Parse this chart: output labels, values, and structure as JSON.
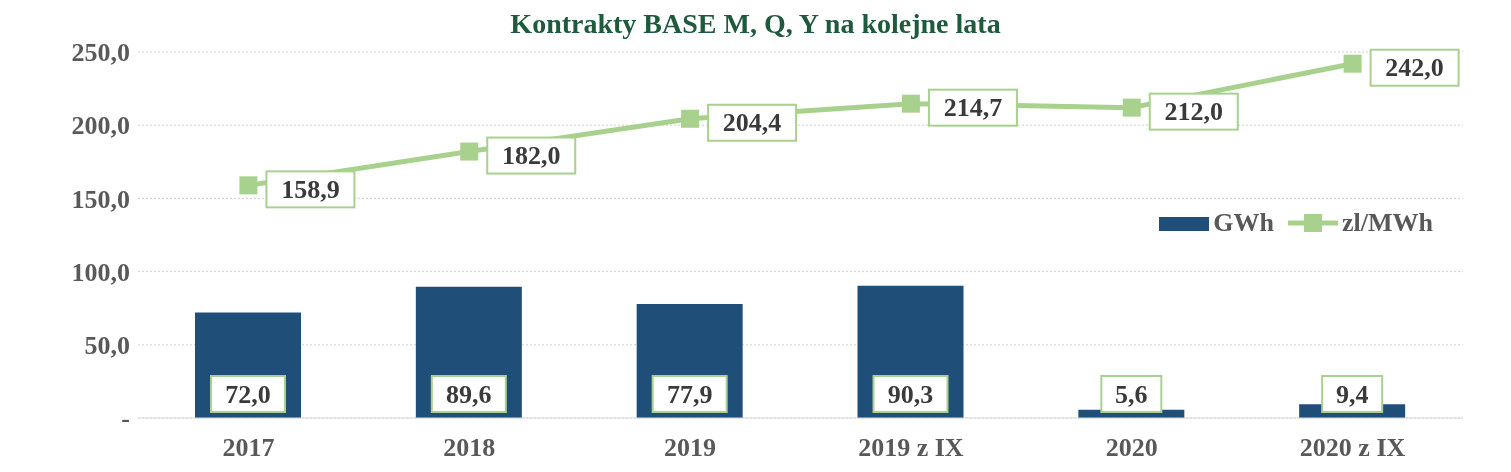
{
  "chart_data": {
    "type": "bar",
    "title": "Kontrakty BASE M, Q, Y na kolejne lata",
    "categories": [
      "2017",
      "2018",
      "2019",
      "2019 z IX",
      "2020",
      "2020 z IX"
    ],
    "series": [
      {
        "name": "GWh",
        "color": "#1f4e79",
        "values": [
          72.0,
          89.6,
          77.9,
          90.3,
          5.6,
          9.4
        ],
        "value_labels": [
          "72,0",
          "89,6",
          "77,9",
          "90,3",
          "5,6",
          "9,4"
        ]
      },
      {
        "name": "zl/MWh",
        "type": "line",
        "color": "#a9d18e",
        "marker": "square",
        "values": [
          158.9,
          182.0,
          204.4,
          214.7,
          212.0,
          242.0
        ],
        "value_labels": [
          "158,9",
          "182,0",
          "204,4",
          "214,7",
          "212,0",
          "242,0"
        ]
      }
    ],
    "ylim": [
      0,
      250
    ],
    "yticks": [
      {
        "value": 0,
        "label": "-"
      },
      {
        "value": 50,
        "label": "50,0"
      },
      {
        "value": 100,
        "label": "100,0"
      },
      {
        "value": 150,
        "label": "150,0"
      },
      {
        "value": 200,
        "label": "200,0"
      },
      {
        "value": 250,
        "label": "250,0"
      }
    ],
    "grid": "y",
    "legend": "right"
  }
}
